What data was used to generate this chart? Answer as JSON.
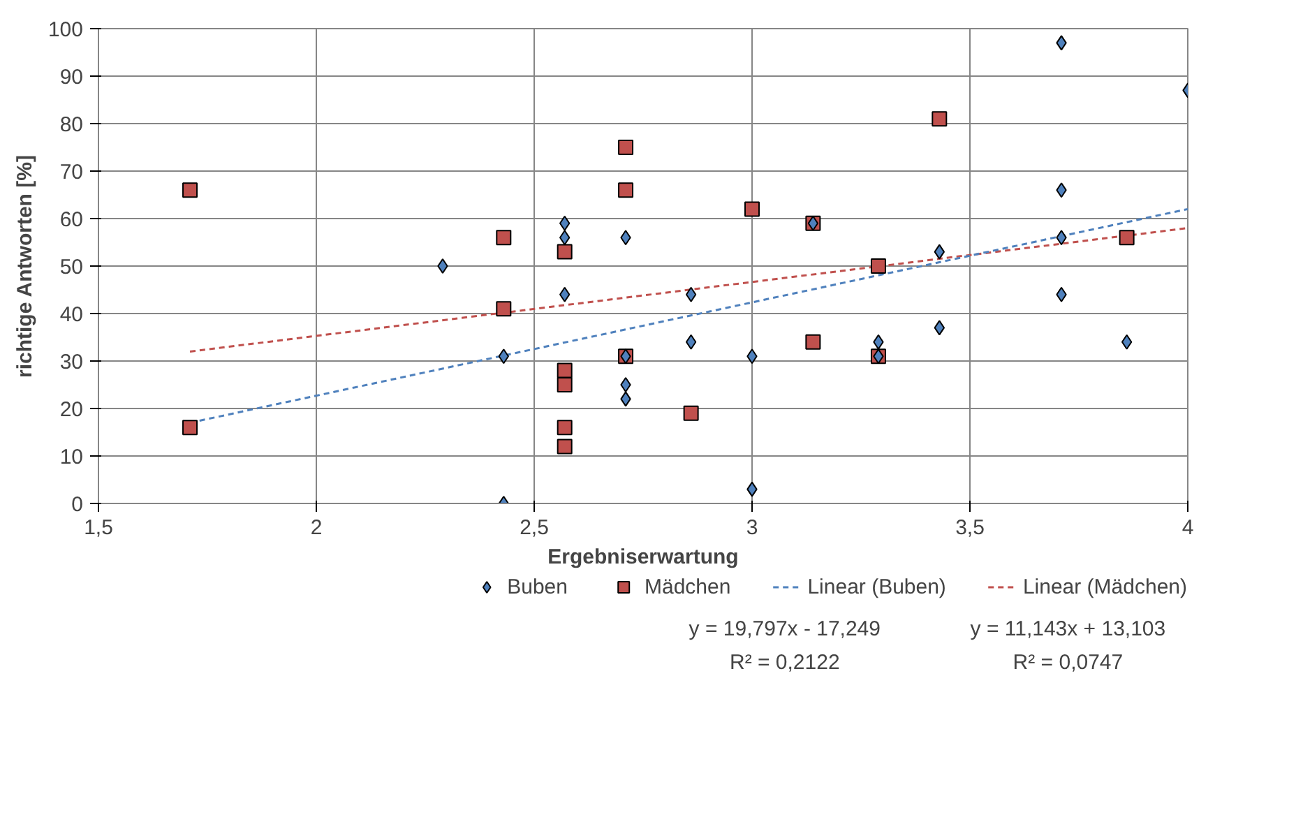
{
  "chart_data": {
    "type": "scatter",
    "xlabel": "Ergebniserwartung",
    "ylabel": "richtige Antworten [%]",
    "xlim": [
      1.5,
      4
    ],
    "xticks": [
      {
        "value": 1.5,
        "label": "1,5"
      },
      2,
      {
        "value": 2.5,
        "label": "2,5"
      },
      3,
      {
        "value": 3.5,
        "label": "3,5"
      },
      4
    ],
    "ylim": [
      0,
      100
    ],
    "yticks": [
      0,
      10,
      20,
      30,
      40,
      50,
      60,
      70,
      80,
      90,
      100
    ],
    "grid": true,
    "legend": "bottom",
    "series": [
      {
        "name": "Buben",
        "marker": "diamond",
        "color": "#4f81bd",
        "x": [
          2.29,
          2.43,
          2.43,
          2.57,
          2.57,
          2.57,
          2.71,
          2.71,
          2.71,
          2.71,
          2.86,
          2.86,
          3,
          3,
          3.14,
          3.29,
          3.29,
          3.43,
          3.43,
          3.71,
          3.71,
          3.71,
          3.71,
          3.86,
          4
        ],
        "values": [
          50,
          31,
          0,
          59,
          56,
          44,
          56,
          31,
          25,
          22,
          44,
          34,
          31,
          3,
          59,
          34,
          31,
          53,
          37,
          97,
          66,
          56,
          44,
          34,
          87
        ]
      },
      {
        "name": "Mädchen",
        "marker": "square",
        "color": "#c0504d",
        "x": [
          1.71,
          1.71,
          2.43,
          2.43,
          2.57,
          2.57,
          2.57,
          2.57,
          2.57,
          2.71,
          2.71,
          2.71,
          2.86,
          3,
          3.14,
          3.14,
          3.29,
          3.29,
          3.43,
          3.86
        ],
        "values": [
          66,
          16,
          56,
          41,
          53,
          28,
          25,
          16,
          12,
          75,
          66,
          31,
          19,
          62,
          59,
          34,
          50,
          31,
          81,
          56
        ]
      },
      {
        "name": "Linear (Buben)",
        "type": "line",
        "line_style": "dashed",
        "color": "#4f81bd",
        "x": [
          1.71,
          4
        ],
        "values": [
          17,
          62
        ]
      },
      {
        "name": "Linear (Mädchen)",
        "type": "line",
        "line_style": "dashed",
        "color": "#c0504d",
        "x": [
          1.71,
          4
        ],
        "values": [
          32,
          58
        ]
      }
    ],
    "annotations": [
      "y = 19,797x - 17,249",
      "R² = 0,2122",
      "y = 11,143x + 13,103",
      "R² = 0,0747"
    ]
  }
}
